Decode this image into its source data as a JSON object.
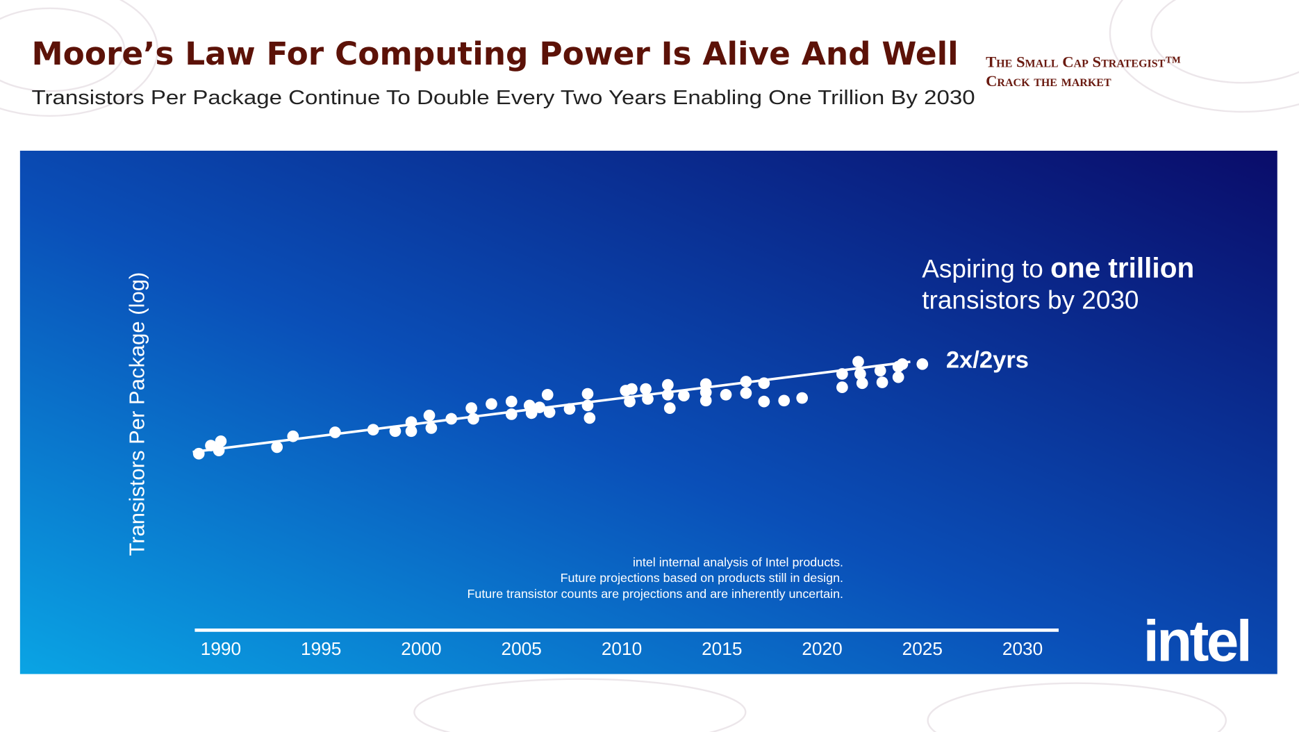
{
  "header": {
    "title": "Moore’s Law For Computing Power Is Alive And Well",
    "subtitle": "Transistors Per Package Continue To Double Every Two Years Enabling One Trillion By 2030",
    "brand": [
      "The Small Cap Strategist™",
      "Crack the market"
    ]
  },
  "chart_data": {
    "type": "scatter",
    "log_scale": true,
    "color": "#ffffff",
    "y_label": "Transistors Per Package (log)",
    "annotation": {
      "line1_start": "Aspiring to ",
      "line1_bold": "one trillion",
      "line2": "transistors by 2030",
      "trend_label": "2x/2yrs"
    },
    "footnotes": [
      "intel internal analysis of Intel products.",
      "Future projections based on products still in design.",
      "Future transistor counts are projections and are inherently uncertain."
    ],
    "logo": "intel",
    "xlim": [
      1988.7,
      2031.8
    ],
    "xticks": [
      1990,
      1995,
      2000,
      2005,
      2010,
      2015,
      2020,
      2025,
      2030
    ],
    "ylim": [
      100000.0,
      10000000000000.0
    ],
    "x": [
      1988.9,
      1989.5,
      1989.9,
      1990.0,
      1992.8,
      1993.6,
      1995.7,
      1997.6,
      1998.7,
      1999.5,
      1999.5,
      2000.4,
      2000.5,
      2001.5,
      2002.5,
      2002.6,
      2003.5,
      2004.5,
      2004.5,
      2005.4,
      2005.5,
      2005.9,
      2006.3,
      2006.4,
      2007.4,
      2008.3,
      2008.3,
      2008.4,
      2010.2,
      2010.4,
      2010.5,
      2011.2,
      2011.3,
      2012.3,
      2012.3,
      2012.4,
      2013.1,
      2014.2,
      2014.2,
      2014.2,
      2015.2,
      2016.2,
      2016.2,
      2017.1,
      2017.1,
      2018.1,
      2019.0,
      2021.0,
      2021.0,
      2021.8,
      2021.9,
      2022.0,
      2022.9,
      2023.0,
      2023.8,
      2023.8,
      2024.0,
      2025.0
    ],
    "values": [
      720000.0,
      2100000.0,
      1100000.0,
      3700000.0,
      1700000.0,
      7100000.0,
      12000000.0,
      17000000.0,
      14000000.0,
      46000000.0,
      14000000.0,
      110000000.0,
      21000000.0,
      71000000.0,
      290000000.0,
      71000000.0,
      500000000.0,
      690000000.0,
      130000000.0,
      410000000.0,
      150000000.0,
      320000000.0,
      1700000000.0,
      170000000.0,
      260000000.0,
      1900000000.0,
      410000000.0,
      79000000.0,
      2900000000.0,
      690000000.0,
      3600000000.0,
      3600000000.0,
      970000000.0,
      6200000000.0,
      1700000000.0,
      290000000.0,
      1500000000.0,
      6900000000.0,
      2300000000.0,
      780000000.0,
      1700000000.0,
      9500000000.0,
      2100000000.0,
      7700000000.0,
      690000000.0,
      780000000.0,
      1100000000.0,
      26000000000.0,
      4500000000.0,
      130000000000.0,
      26000000000.0,
      7700000000.0,
      40000000000.0,
      8600000000.0,
      68000000000.0,
      17000000000.0,
      95000000000.0,
      95000000000.0
    ],
    "trend_line": {
      "x": [
        1988.6,
        2024.4
      ],
      "values": [
        900000.0,
        130000000000.0
      ]
    }
  }
}
